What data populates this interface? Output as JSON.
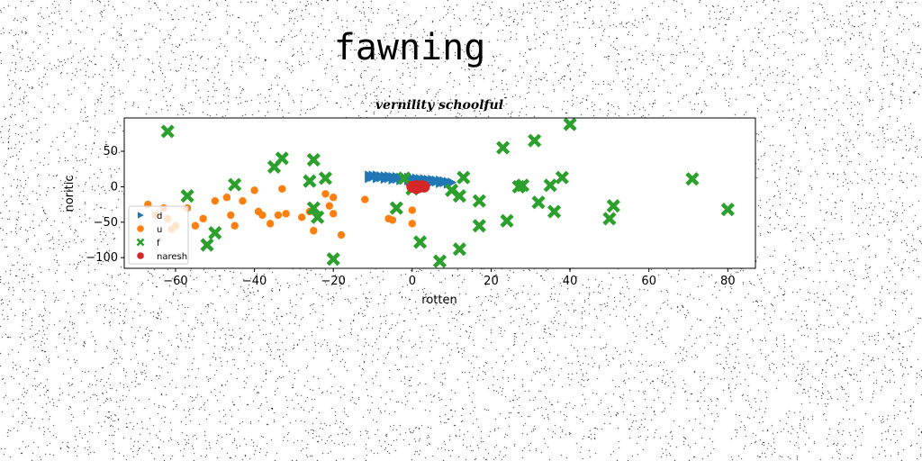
{
  "figure_title": "fawning",
  "chart_data": {
    "type": "scatter",
    "title": "vernility schoolful",
    "xlabel": "rotten",
    "ylabel": "noritic",
    "xlim": [
      -73,
      87
    ],
    "ylim": [
      -115,
      97
    ],
    "xticks": [
      -60,
      -40,
      -20,
      0,
      20,
      40,
      60,
      80
    ],
    "yticks": [
      50,
      0,
      -50,
      -100
    ],
    "ytick_labels": [
      "50",
      "0",
      "−50",
      "−100"
    ],
    "xtick_labels": [
      "−60",
      "−40",
      "−20",
      "0",
      "20",
      "40",
      "60",
      "80"
    ],
    "legend_position": "lower-left",
    "series": [
      {
        "name": "d",
        "marker": "triangle-right",
        "color": "#1f77b4",
        "points": [
          [
            -11,
            16
          ],
          [
            -10,
            16
          ],
          [
            -9,
            16
          ],
          [
            -8,
            15
          ],
          [
            -7,
            15
          ],
          [
            -6,
            15
          ],
          [
            -5,
            14
          ],
          [
            -4,
            14
          ],
          [
            -3,
            13
          ],
          [
            -2,
            13
          ],
          [
            -1,
            13
          ],
          [
            0,
            12
          ],
          [
            1,
            12
          ],
          [
            2,
            11
          ],
          [
            3,
            11
          ],
          [
            4,
            10
          ],
          [
            5,
            10
          ],
          [
            6,
            9
          ],
          [
            7,
            9
          ],
          [
            8,
            8
          ],
          [
            9,
            7
          ],
          [
            10,
            6
          ],
          [
            -11,
            12
          ],
          [
            -9,
            12
          ],
          [
            -7,
            11
          ],
          [
            -5,
            10
          ],
          [
            -3,
            9
          ],
          [
            -1,
            9
          ],
          [
            1,
            8
          ],
          [
            3,
            7
          ],
          [
            5,
            6
          ],
          [
            7,
            5
          ],
          [
            9,
            4
          ],
          [
            -10,
            14
          ],
          [
            -6,
            12
          ],
          [
            -2,
            11
          ],
          [
            2,
            9
          ],
          [
            6,
            7
          ],
          [
            -8,
            13
          ],
          [
            -4,
            11
          ],
          [
            0,
            10
          ],
          [
            4,
            8
          ],
          [
            8,
            6
          ]
        ]
      },
      {
        "name": "u",
        "marker": "circle",
        "color": "#ff7f0e",
        "points": [
          [
            -67,
            -25
          ],
          [
            -65,
            -40
          ],
          [
            -63,
            -30
          ],
          [
            -62,
            -45
          ],
          [
            -61,
            -60
          ],
          [
            -60,
            -55
          ],
          [
            -57,
            -30
          ],
          [
            -55,
            -55
          ],
          [
            -53,
            -45
          ],
          [
            -50,
            -20
          ],
          [
            -47,
            -15
          ],
          [
            -46,
            -40
          ],
          [
            -45,
            -55
          ],
          [
            -43,
            -20
          ],
          [
            -40,
            -5
          ],
          [
            -39,
            -35
          ],
          [
            -38,
            -40
          ],
          [
            -36,
            -52
          ],
          [
            -34,
            -40
          ],
          [
            -33,
            -3
          ],
          [
            -32,
            -38
          ],
          [
            -28,
            -43
          ],
          [
            -26,
            -35
          ],
          [
            -25,
            -62
          ],
          [
            -22,
            -10
          ],
          [
            -21,
            -27
          ],
          [
            -20,
            -15
          ],
          [
            -20,
            -38
          ],
          [
            -18,
            -68
          ],
          [
            -12,
            -18
          ],
          [
            -6,
            -45
          ],
          [
            -5,
            -47
          ],
          [
            0,
            -33
          ],
          [
            0,
            -52
          ]
        ]
      },
      {
        "name": "f",
        "marker": "x",
        "color": "#2ca02c",
        "points": [
          [
            -62,
            78
          ],
          [
            -57,
            -13
          ],
          [
            -52,
            -82
          ],
          [
            -50,
            -65
          ],
          [
            -45,
            3
          ],
          [
            -35,
            28
          ],
          [
            -33,
            40
          ],
          [
            -26,
            8
          ],
          [
            -25,
            -30
          ],
          [
            -25,
            38
          ],
          [
            -24,
            -43
          ],
          [
            -22,
            12
          ],
          [
            -20,
            -102
          ],
          [
            -4,
            -30
          ],
          [
            -2,
            12
          ],
          [
            0,
            -3
          ],
          [
            2,
            -78
          ],
          [
            7,
            -105
          ],
          [
            10,
            -5
          ],
          [
            12,
            -13
          ],
          [
            12,
            -88
          ],
          [
            13,
            13
          ],
          [
            17,
            -20
          ],
          [
            17,
            -55
          ],
          [
            23,
            55
          ],
          [
            24,
            -48
          ],
          [
            27,
            0
          ],
          [
            28,
            2
          ],
          [
            31,
            65
          ],
          [
            32,
            -22
          ],
          [
            35,
            2
          ],
          [
            36,
            -35
          ],
          [
            38,
            13
          ],
          [
            40,
            88
          ],
          [
            50,
            -45
          ],
          [
            51,
            -27
          ],
          [
            71,
            11
          ],
          [
            80,
            -32
          ]
        ]
      },
      {
        "name": "naresh",
        "marker": "circle",
        "color": "#d62728",
        "points": [
          [
            0,
            0
          ],
          [
            1,
            1
          ],
          [
            2,
            0
          ],
          [
            3,
            0
          ],
          [
            0.5,
            -1
          ],
          [
            1.5,
            -1
          ],
          [
            2.5,
            1
          ],
          [
            1,
            -2
          ]
        ]
      }
    ]
  }
}
